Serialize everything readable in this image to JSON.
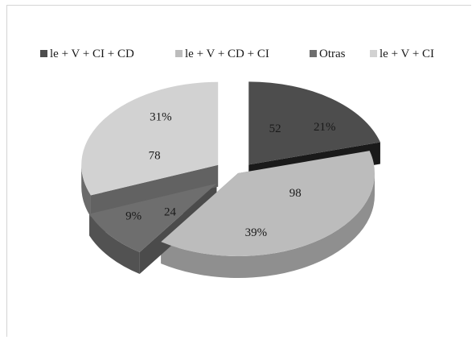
{
  "chart_data": {
    "type": "pie",
    "variant": "3d-exploded",
    "title": "",
    "legend_position": "top",
    "slices": [
      {
        "name": "le + V + CI + CD",
        "value": 52,
        "percent": "21%",
        "color": "#4d4d4d"
      },
      {
        "name": "le + V + CD + CI",
        "value": 98,
        "percent": "39%",
        "color": "#bcbcbc"
      },
      {
        "name": "Otras",
        "value": 24,
        "percent": "9%",
        "color": "#6e6e6e"
      },
      {
        "name": "le + V + CI",
        "value": 78,
        "percent": "31%",
        "color": "#d2d2d2"
      }
    ]
  }
}
